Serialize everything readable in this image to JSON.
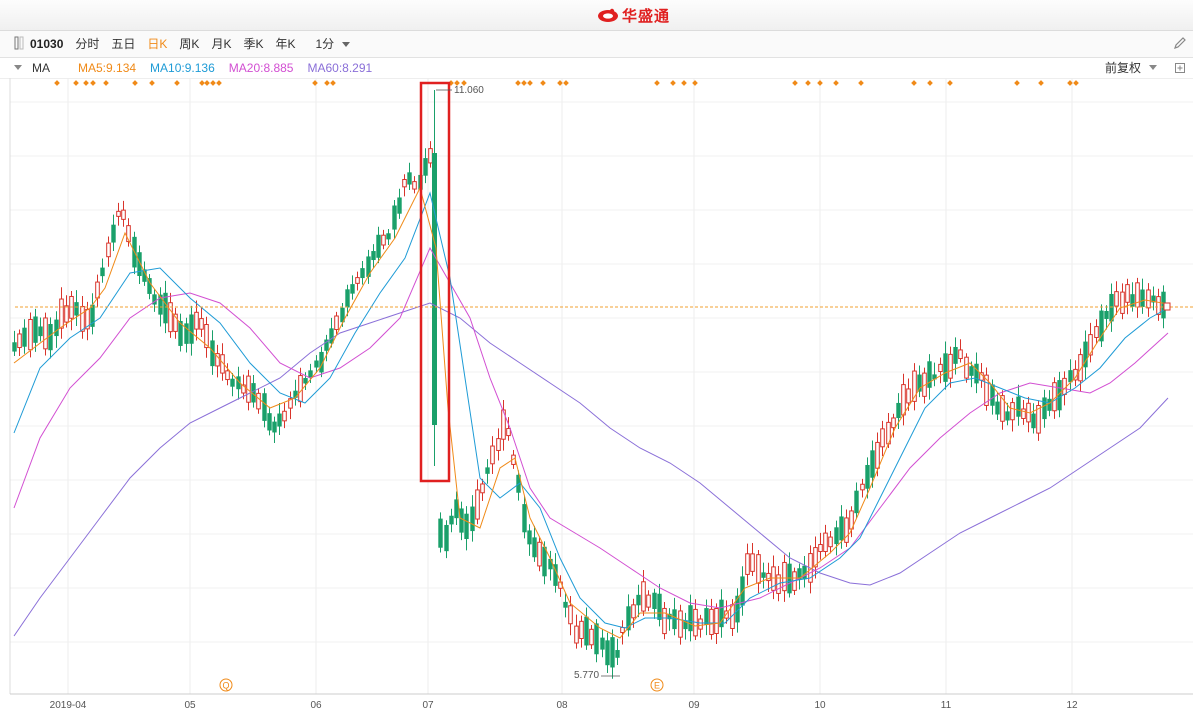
{
  "app": {
    "title": "华盛通"
  },
  "toolbar": {
    "code": "01030",
    "tabs": [
      {
        "label": "分时",
        "active": false
      },
      {
        "label": "五日",
        "active": false
      },
      {
        "label": "日K",
        "active": true
      },
      {
        "label": "周K",
        "active": false
      },
      {
        "label": "月K",
        "active": false
      },
      {
        "label": "季K",
        "active": false
      },
      {
        "label": "年K",
        "active": false
      }
    ],
    "minute_select": "1分"
  },
  "ma_bar": {
    "label": "MA",
    "items": [
      {
        "text": "MA5:9.134",
        "color": "#f08a18"
      },
      {
        "text": "MA10:9.136",
        "color": "#1e9bd6"
      },
      {
        "text": "MA20:8.885",
        "color": "#d24fd2"
      },
      {
        "text": "MA60:8.291",
        "color": "#8a6fd8"
      }
    ],
    "adjust": "前复权"
  },
  "chart": {
    "x_labels": [
      "2019-04",
      "05",
      "06",
      "07",
      "08",
      "09",
      "10",
      "11",
      "12"
    ],
    "high_label": "11.060",
    "low_label": "5.770",
    "event_badges": [
      "Q",
      "E"
    ],
    "colors": {
      "up": "#d9342b",
      "down": "#1aa06a",
      "ma5": "#f08a18",
      "ma10": "#1e9bd6",
      "ma20": "#d24fd2",
      "ma60": "#8a6fd8",
      "highlight": "#e02020",
      "marker": "#f08a18"
    }
  }
}
